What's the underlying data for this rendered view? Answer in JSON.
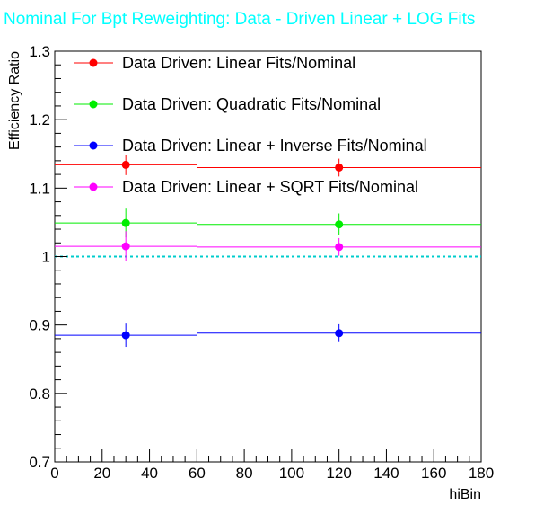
{
  "chart_data": {
    "type": "scatter",
    "title": "Nominal For Bpt Reweighting: Data - Driven Linear + LOG Fits",
    "xlabel": "hiBin",
    "ylabel": "Efficiency Ratio",
    "xlim": [
      0,
      180
    ],
    "ylim": [
      0.7,
      1.3
    ],
    "x_ticks": [
      0,
      20,
      40,
      60,
      80,
      100,
      120,
      140,
      160,
      180
    ],
    "y_ticks": [
      0.7,
      0.8,
      0.9,
      1,
      1.1,
      1.2,
      1.3
    ],
    "x_tick_labels": [
      "0",
      "20",
      "40",
      "60",
      "80",
      "100",
      "120",
      "140",
      "160",
      "180"
    ],
    "y_tick_labels": [
      "0.7",
      "0.8",
      "0.9",
      "1",
      "1.1",
      "1.2",
      "1.3"
    ],
    "bins": [
      [
        0,
        60
      ],
      [
        60,
        180
      ]
    ],
    "x": [
      30,
      120
    ],
    "reference_line": {
      "y": 1.0,
      "color": "#00cccc",
      "style": "dotted"
    },
    "legend_position": "top",
    "series": [
      {
        "name": "Data Driven: Linear Fits/Nominal",
        "color": "#ff0000",
        "values": [
          1.134,
          1.13
        ],
        "errors": [
          0.015,
          0.013
        ]
      },
      {
        "name": "Data Driven: Quadratic Fits/Nominal",
        "color": "#00ee00",
        "values": [
          1.049,
          1.047
        ],
        "errors": [
          0.021,
          0.016
        ]
      },
      {
        "name": "Data Driven: Linear + Inverse Fits/Nominal",
        "color": "#0000ff",
        "values": [
          0.885,
          0.888
        ],
        "errors": [
          0.017,
          0.013
        ]
      },
      {
        "name": "Data Driven: Linear + SQRT Fits/Nominal",
        "color": "#ff00ff",
        "values": [
          1.015,
          1.014
        ],
        "errors": [
          0.022,
          0.013
        ]
      }
    ]
  }
}
